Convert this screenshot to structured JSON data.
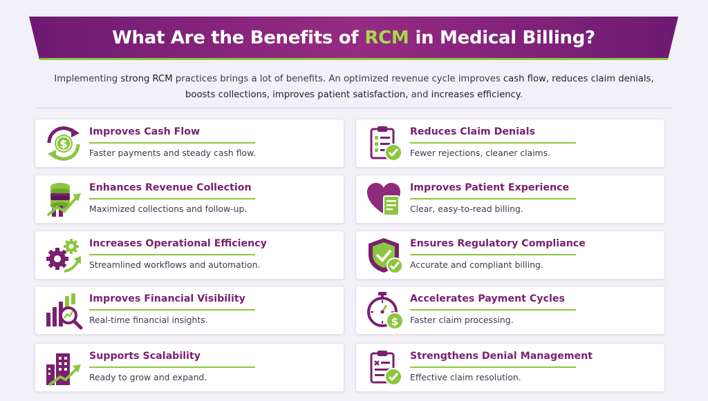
{
  "header": {
    "title_before": "What Are the Benefits of",
    "title_highlight": "RCM",
    "title_after": "in Medical Billing?"
  },
  "intro": {
    "line1": {
      "t1": "Implementing ",
      "b1": "strong RCM",
      "t2": " practices brings a lot of benefits. An optimized revenue cycle improves ",
      "b2": "cash flow, reduces claim denials,"
    },
    "line2": {
      "b1": "boosts collections, improves patient satisfaction,",
      "t1": " and ",
      "b2": "increases efficiency",
      "t2": "."
    }
  },
  "benefits": [
    {
      "title": "Improves Cash Flow",
      "desc": "Faster payments and steady cash flow.",
      "icon": "cash-flow-icon"
    },
    {
      "title": "Reduces Claim Denials",
      "desc": "Fewer rejections, cleaner claims.",
      "icon": "claim-checklist-icon"
    },
    {
      "title": "Enhances Revenue Collection",
      "desc": "Maximized collections and follow-up.",
      "icon": "revenue-growth-icon"
    },
    {
      "title": "Improves Patient Experience",
      "desc": "Clear, easy-to-read billing.",
      "icon": "heart-document-icon"
    },
    {
      "title": "Increases Operational Efficiency",
      "desc": "Streamlined workflows and automation.",
      "icon": "gears-icon"
    },
    {
      "title": "Ensures Regulatory Compliance",
      "desc": "Accurate and compliant billing.",
      "icon": "shield-check-icon"
    },
    {
      "title": "Improves Financial Visibility",
      "desc": "Real-time financial insights.",
      "icon": "chart-magnifier-icon"
    },
    {
      "title": "Accelerates Payment Cycles",
      "desc": "Faster claim processing.",
      "icon": "stopwatch-dollar-icon"
    },
    {
      "title": "Supports Scalability",
      "desc": "Ready to grow and expand.",
      "icon": "building-growth-icon"
    },
    {
      "title": "Strengthens Denial Management",
      "desc": "Effective claim resolution.",
      "icon": "clipboard-check-icon"
    }
  ],
  "colors": {
    "purple": "#7a1f6e",
    "green": "#8cc63f"
  }
}
